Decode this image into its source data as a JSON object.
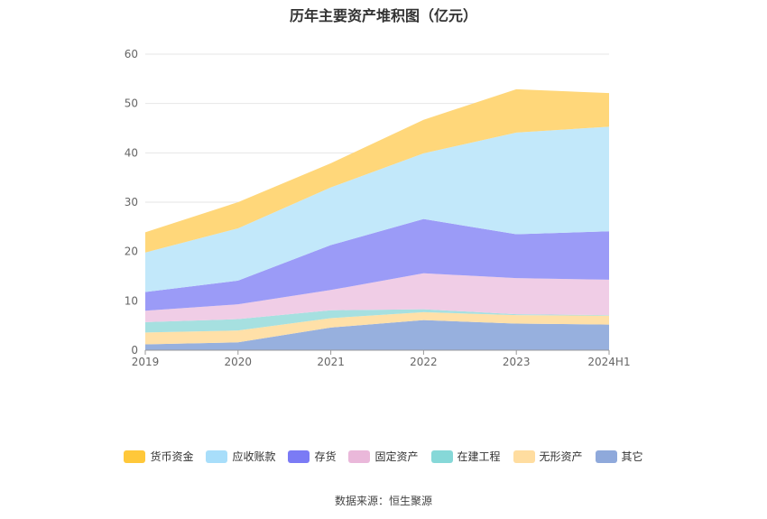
{
  "chart_data": {
    "type": "area",
    "stacked": true,
    "title": "历年主要资产堆积图（亿元）",
    "categories": [
      "2019",
      "2020",
      "2021",
      "2022",
      "2023",
      "2024H1"
    ],
    "ylim": [
      0,
      60
    ],
    "yticks": [
      0,
      10,
      20,
      30,
      40,
      50,
      60
    ],
    "grid": true,
    "series": [
      {
        "name": "其它",
        "color": "#97b0de",
        "values": [
          1.2,
          1.6,
          4.6,
          6.1,
          5.4,
          5.2
        ]
      },
      {
        "name": "无形资产",
        "color": "#ffe0a8",
        "values": [
          2.4,
          2.4,
          1.9,
          1.6,
          1.7,
          1.8
        ]
      },
      {
        "name": "在建工程",
        "color": "#a6e0e0",
        "values": [
          2.1,
          2.3,
          1.6,
          0.6,
          0.2,
          0.1
        ]
      },
      {
        "name": "固定资产",
        "color": "#f0cde6",
        "values": [
          2.3,
          3.0,
          4.1,
          7.3,
          7.3,
          7.2
        ]
      },
      {
        "name": "存货",
        "color": "#9b9bf7",
        "values": [
          3.8,
          4.8,
          9.1,
          11.0,
          8.9,
          9.8
        ]
      },
      {
        "name": "应收账款",
        "color": "#c2e8fa",
        "values": [
          8.0,
          10.6,
          11.7,
          13.3,
          20.6,
          21.2
        ]
      },
      {
        "name": "货币资金",
        "color": "#ffd77a",
        "values": [
          4.1,
          5.3,
          4.9,
          6.8,
          8.8,
          6.8
        ]
      }
    ],
    "legend": [
      {
        "name": "货币资金",
        "color": "#ffc83a"
      },
      {
        "name": "应收账款",
        "color": "#a8defa"
      },
      {
        "name": "存货",
        "color": "#7b7bf5"
      },
      {
        "name": "固定资产",
        "color": "#eab8da"
      },
      {
        "name": "在建工程",
        "color": "#86d8d8"
      },
      {
        "name": "无形资产",
        "color": "#ffdda0"
      },
      {
        "name": "其它",
        "color": "#8fa9db"
      }
    ],
    "legend_position": "bottom",
    "source": "数据来源：恒生聚源"
  }
}
